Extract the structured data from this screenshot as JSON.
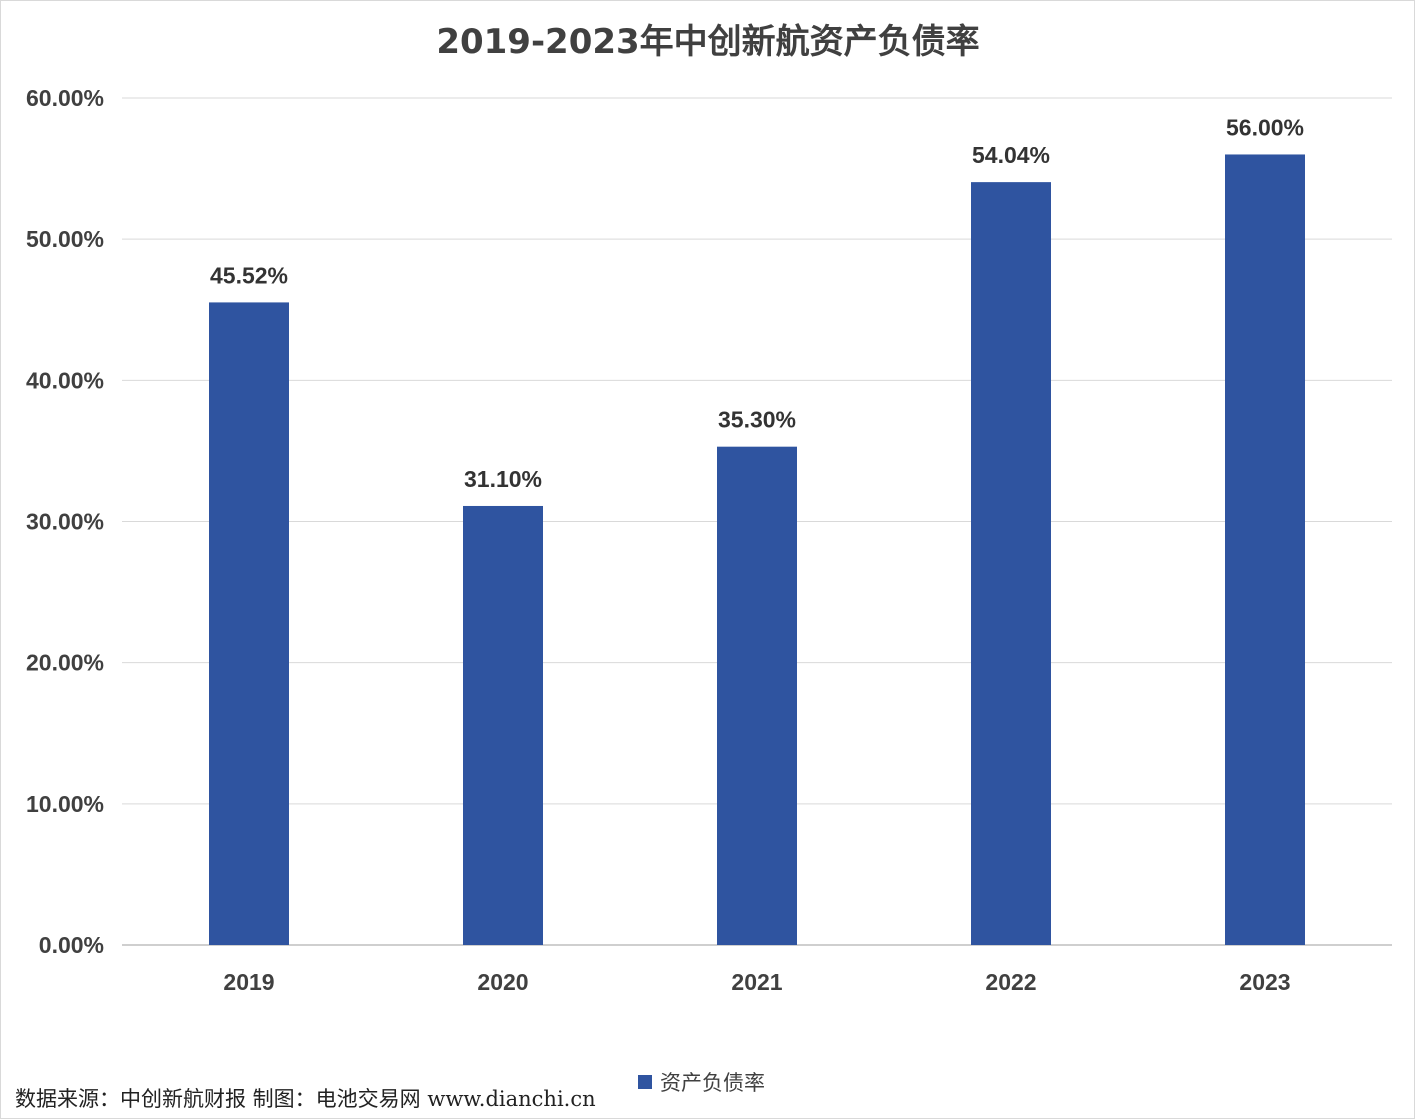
{
  "chart_data": {
    "type": "bar",
    "title": "2019-2023年中创新航资产负债率",
    "categories": [
      "2019",
      "2020",
      "2021",
      "2022",
      "2023"
    ],
    "series": [
      {
        "name": "资产负债率",
        "values": [
          45.52,
          31.1,
          35.3,
          54.04,
          56.0
        ],
        "value_labels": [
          "45.52%",
          "31.10%",
          "35.30%",
          "54.04%",
          "56.00%"
        ],
        "color": "#2F54A0"
      }
    ],
    "ylim": [
      0,
      60
    ],
    "yticks": [
      0,
      10,
      20,
      30,
      40,
      50,
      60
    ],
    "ytick_labels": [
      "0.00%",
      "10.00%",
      "20.00%",
      "30.00%",
      "40.00%",
      "50.00%",
      "60.00%"
    ],
    "xlabel": "",
    "ylabel": "",
    "grid": true,
    "legend_position": "bottom"
  },
  "source_note": "数据来源：中创新航财报  制图：电池交易网 www.dianchi.cn"
}
